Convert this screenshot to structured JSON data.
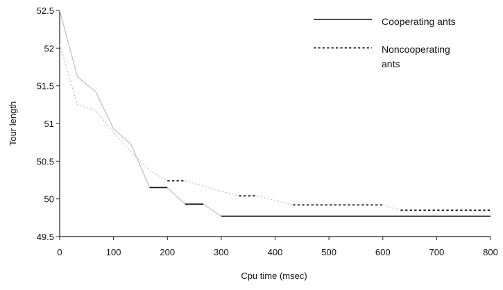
{
  "chart_data": {
    "type": "line",
    "title": "",
    "xlabel": "Cpu time (msec)",
    "ylabel": "Tour length",
    "xlim": [
      0,
      800
    ],
    "ylim": [
      49.5,
      52.5
    ],
    "xticks": [
      "0",
      "100",
      "200",
      "300",
      "400",
      "500",
      "600",
      "700",
      "800"
    ],
    "yticks": [
      "52.5",
      "52",
      "51.5",
      "51",
      "50.5",
      "50",
      "49.5"
    ],
    "grid": false,
    "legend_position": "top-right",
    "series": [
      {
        "name": "Cooperating ants",
        "legend_lines": [
          "Cooperating ants"
        ],
        "style": "solid",
        "segments": [
          {
            "style": "light",
            "points": [
              [
                0,
                52.5
              ],
              [
                33,
                51.62
              ],
              [
                67,
                51.42
              ],
              [
                100,
                50.93
              ],
              [
                133,
                50.72
              ],
              [
                167,
                50.15
              ]
            ]
          },
          {
            "style": "dark",
            "points": [
              [
                167,
                50.15
              ],
              [
                200,
                50.15
              ]
            ]
          },
          {
            "style": "light",
            "points": [
              [
                200,
                50.15
              ],
              [
                233,
                49.93
              ]
            ]
          },
          {
            "style": "dark",
            "points": [
              [
                233,
                49.93
              ],
              [
                267,
                49.93
              ]
            ]
          },
          {
            "style": "light",
            "points": [
              [
                267,
                49.93
              ],
              [
                300,
                49.77
              ]
            ]
          },
          {
            "style": "dark",
            "points": [
              [
                300,
                49.77
              ],
              [
                800,
                49.77
              ]
            ]
          }
        ]
      },
      {
        "name": "Noncooperating ants",
        "legend_lines": [
          "Noncooperating",
          "ants"
        ],
        "style": "dotted",
        "segments": [
          {
            "style": "light",
            "points": [
              [
                0,
                52.05
              ],
              [
                33,
                51.25
              ],
              [
                67,
                51.17
              ],
              [
                100,
                50.88
              ],
              [
                133,
                50.62
              ],
              [
                167,
                50.38
              ],
              [
                200,
                50.24
              ]
            ]
          },
          {
            "style": "dark",
            "points": [
              [
                200,
                50.24
              ],
              [
                233,
                50.24
              ]
            ]
          },
          {
            "style": "light",
            "points": [
              [
                233,
                50.24
              ],
              [
                300,
                50.1
              ],
              [
                333,
                50.04
              ]
            ]
          },
          {
            "style": "dark",
            "points": [
              [
                333,
                50.04
              ],
              [
                367,
                50.04
              ]
            ]
          },
          {
            "style": "light",
            "points": [
              [
                367,
                50.04
              ],
              [
                433,
                49.92
              ]
            ]
          },
          {
            "style": "dark",
            "points": [
              [
                433,
                49.92
              ],
              [
                600,
                49.92
              ]
            ]
          },
          {
            "style": "light",
            "points": [
              [
                600,
                49.92
              ],
              [
                633,
                49.85
              ]
            ]
          },
          {
            "style": "dark",
            "points": [
              [
                633,
                49.85
              ],
              [
                800,
                49.85
              ]
            ]
          }
        ]
      }
    ]
  },
  "colors": {
    "axis": "#222222",
    "dark_line": "#111111",
    "light_line": "#b8b8b8",
    "text": "#111111"
  }
}
